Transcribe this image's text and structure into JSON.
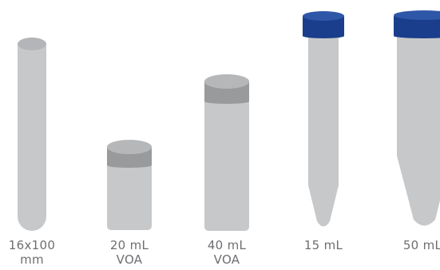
{
  "colors": {
    "tube_body": "#c7c8ca",
    "tube_rim": "#b4b5b8",
    "vial_cap_side": "#999a9c",
    "vial_cap_top": "#b6b7b9",
    "blue_cap_side": "#1a3e8c",
    "blue_cap_top": "#2e57a8",
    "label_text": "#6d6e71"
  },
  "containers": [
    {
      "name": "16x100mm-test-tube",
      "line1": "16x100",
      "line2": "mm"
    },
    {
      "name": "20ml-voa-vial",
      "line1": "20 mL",
      "line2": "VOA"
    },
    {
      "name": "40ml-voa-vial",
      "line1": "40 mL",
      "line2": "VOA"
    },
    {
      "name": "15ml-centrifuge-tube",
      "line1": "15 mL",
      "line2": ""
    },
    {
      "name": "50ml-centrifuge-tube",
      "line1": "50 mL",
      "line2": ""
    }
  ]
}
